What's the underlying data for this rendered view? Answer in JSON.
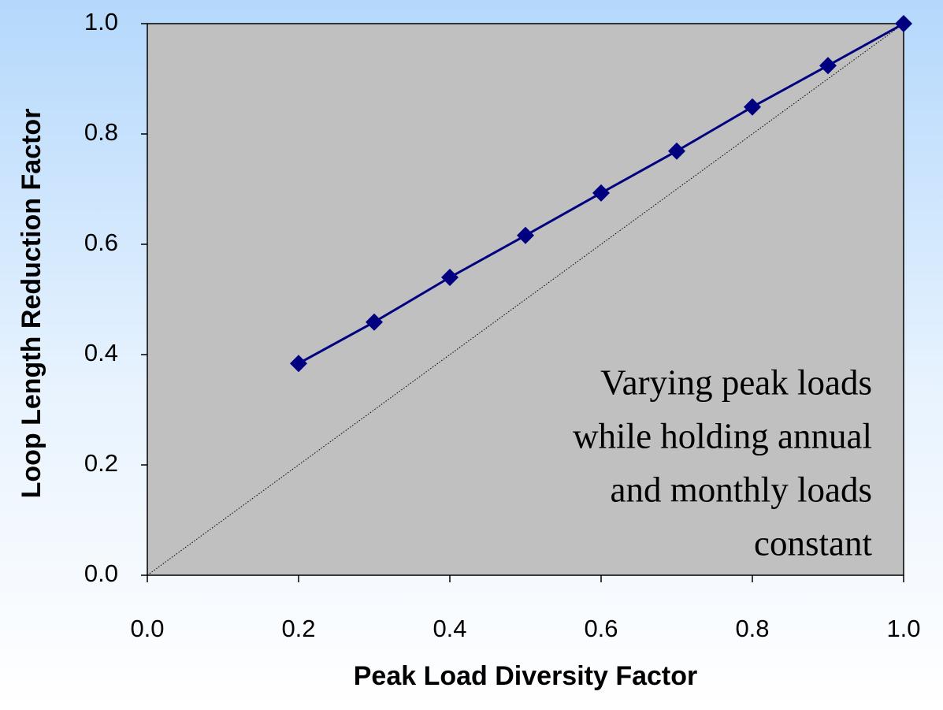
{
  "chart_data": {
    "type": "line",
    "xlabel": "Peak Load Diversity Factor",
    "ylabel": "Loop Length Reduction Factor",
    "series": [
      {
        "color": "#000080",
        "marker": "diamond",
        "line_style": "solid",
        "x": [
          0.2,
          0.3,
          0.4,
          0.5,
          0.6,
          0.7,
          0.8,
          0.9,
          1.0
        ],
        "values": [
          0.384,
          0.459,
          0.54,
          0.616,
          0.693,
          0.769,
          0.849,
          0.924,
          1.0
        ]
      },
      {
        "color": "#000000",
        "line_style": "dotted",
        "x": [
          0,
          1
        ],
        "values": [
          0,
          1
        ]
      }
    ],
    "xlim": [
      0,
      1
    ],
    "ylim": [
      0,
      1
    ],
    "xticks": [
      {
        "value": 0,
        "label": "0.0"
      },
      0.2,
      0.4,
      0.6,
      0.8,
      {
        "value": 1,
        "label": "1.0"
      }
    ],
    "yticks": [
      {
        "value": 0,
        "label": "0.0"
      },
      0.2,
      0.4,
      0.6,
      0.8,
      {
        "value": 1,
        "label": "1.0"
      }
    ],
    "grid": false,
    "annotation": [
      "Varying peak loads",
      "while holding annual",
      "and monthly loads",
      "constant"
    ]
  }
}
